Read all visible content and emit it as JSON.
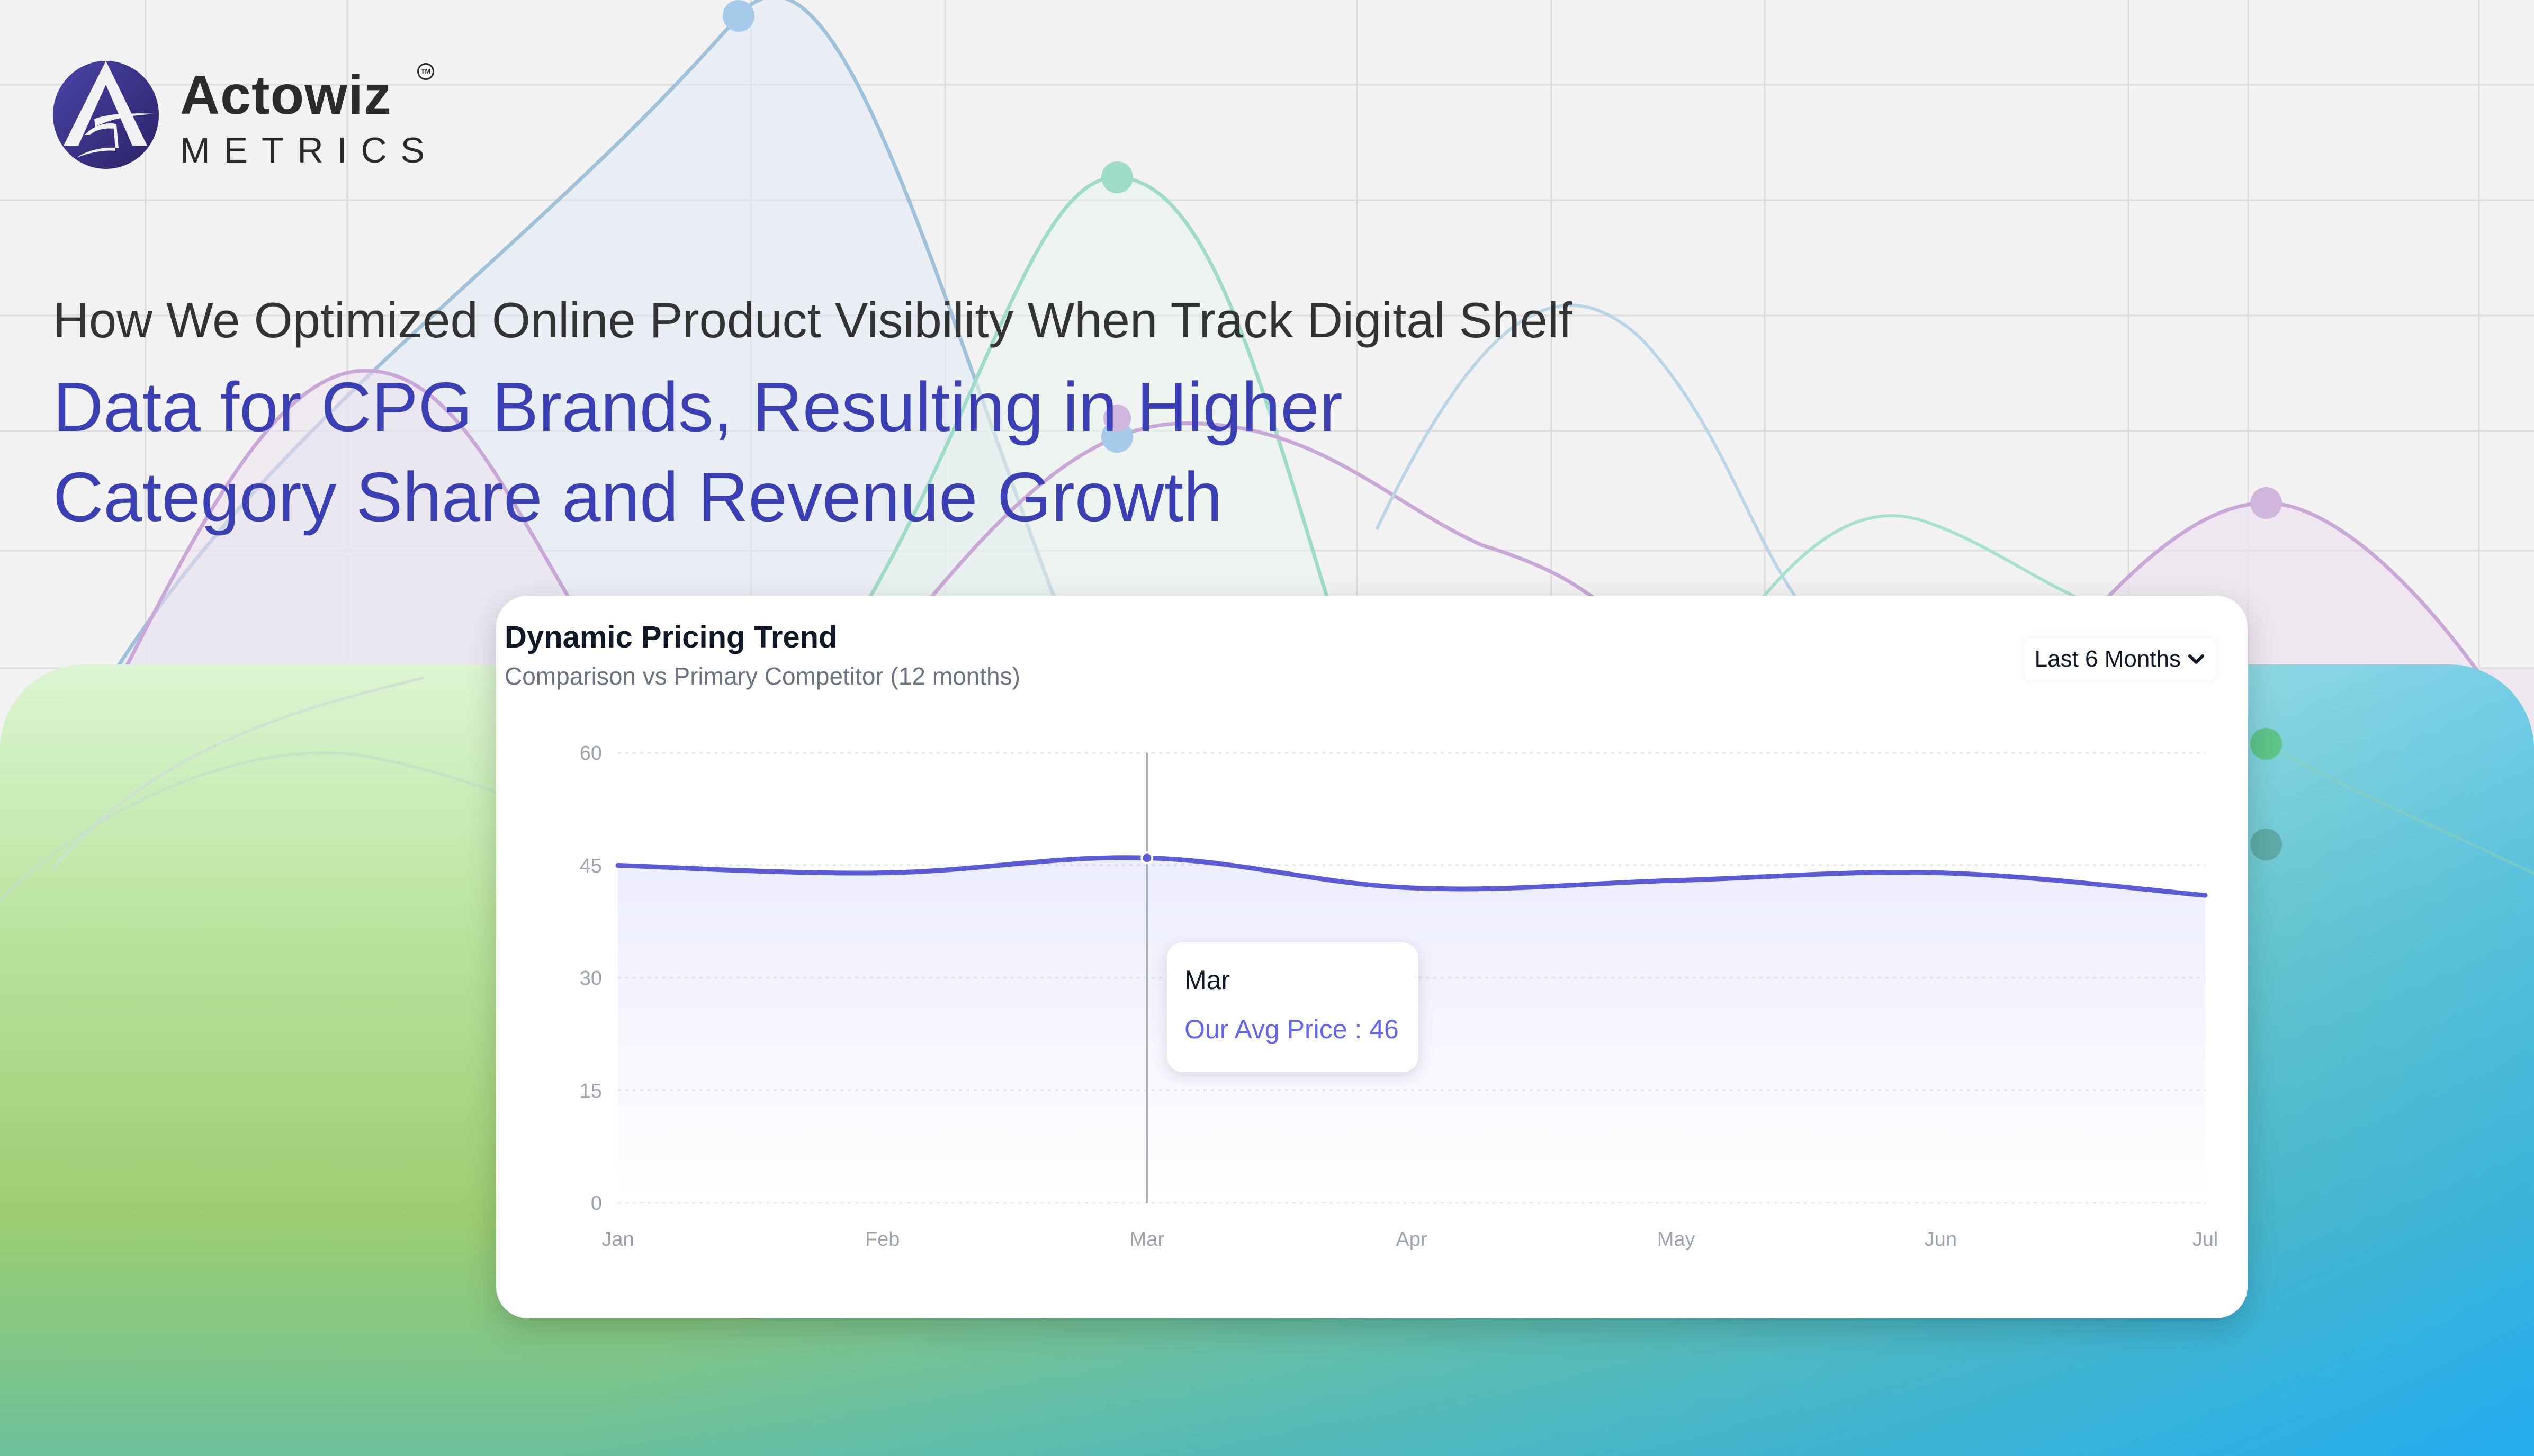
{
  "brand": {
    "name": "Actowiz",
    "sub": "METRICS",
    "trademark": "TM",
    "logo_icon": "a-logo-icon",
    "logo_color": "#3d3594"
  },
  "headline": {
    "line1": "How We Optimized Online Product Visibility When Track Digital Shelf",
    "line2": "Data for CPG Brands, Resulting in Higher",
    "line3": "Category Share and Revenue Growth",
    "accent_color": "#3a3fb4"
  },
  "card": {
    "title": "Dynamic Pricing Trend",
    "subtitle": "Comparison vs Primary Competitor (12 months)",
    "range_select": {
      "selected": "Last 6 Months",
      "icon": "chevron-down-icon"
    },
    "tooltip": {
      "label": "Mar",
      "value_text": "Our Avg Price : 46"
    }
  },
  "chart_data": {
    "type": "area",
    "title": "Dynamic Pricing Trend",
    "subtitle": "Comparison vs Primary Competitor (12 months)",
    "categories": [
      "Jan",
      "Feb",
      "Mar",
      "Apr",
      "May",
      "Jun",
      "Jul"
    ],
    "series": [
      {
        "name": "Our Avg Price",
        "values": [
          45,
          44,
          46,
          42,
          43,
          44,
          41
        ],
        "color": "#5b5bd6"
      }
    ],
    "yticks": [
      0,
      15,
      30,
      45,
      60
    ],
    "ylim": [
      0,
      60
    ],
    "xlabel": "",
    "ylabel": "",
    "grid": "horizontal dashed",
    "legend": "none",
    "active_point": {
      "category": "Mar",
      "value": 46
    }
  }
}
